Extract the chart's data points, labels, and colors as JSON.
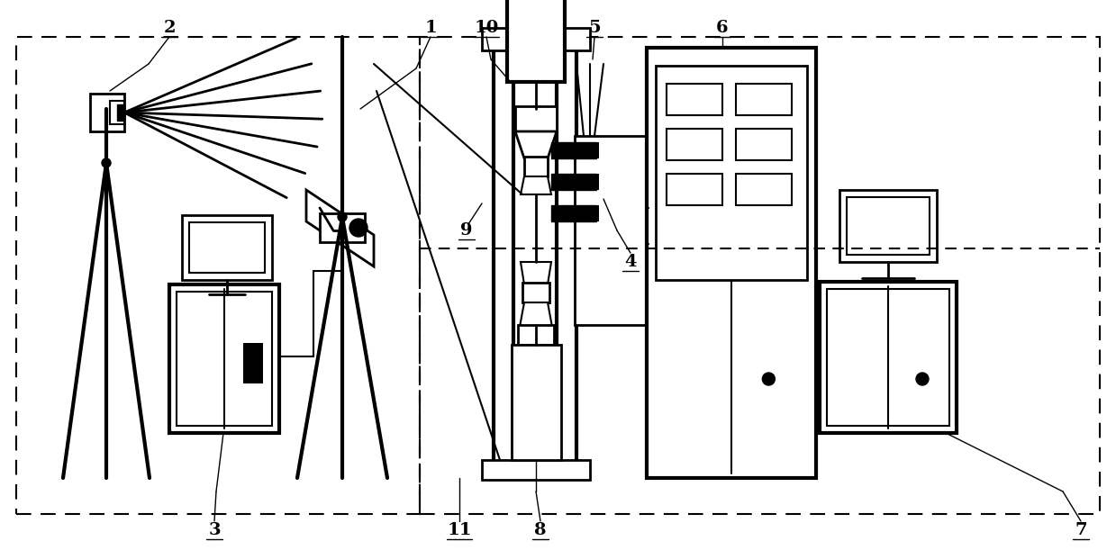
{
  "fig_width": 12.39,
  "fig_height": 6.11,
  "bg_color": "#ffffff",
  "lc": "#000000"
}
